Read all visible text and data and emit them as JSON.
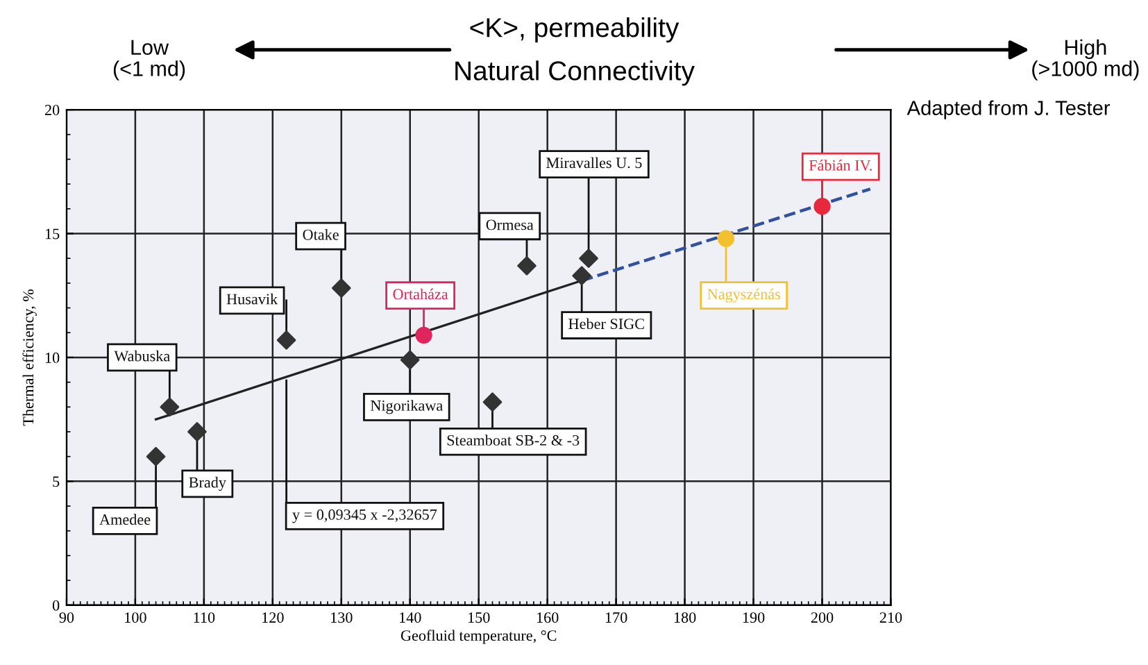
{
  "chart_data": {
    "type": "scatter",
    "xlabel": "Geofluid temperature, °C",
    "ylabel": "Thermal efficiency, %",
    "xlim": [
      90,
      210
    ],
    "xticks": [
      90,
      100,
      110,
      120,
      130,
      140,
      150,
      160,
      170,
      180,
      190,
      200,
      210
    ],
    "ylim": [
      0,
      20
    ],
    "yticks": [
      0,
      5,
      10,
      15,
      20
    ],
    "grid": true,
    "series": [
      {
        "marker": "diamond",
        "color": "#333333",
        "x": [
          103,
          105,
          109,
          122,
          130,
          140,
          152,
          157,
          165,
          166
        ],
        "values": [
          6,
          8,
          7,
          10.7,
          12.8,
          9.9,
          8.2,
          13.7,
          13.3,
          14
        ]
      },
      {
        "marker": "circle",
        "color": "#e0245e",
        "x": [
          142
        ],
        "values": [
          10.9
        ]
      },
      {
        "marker": "circle",
        "color": "#f5c030",
        "x": [
          186
        ],
        "values": [
          14.8
        ]
      },
      {
        "marker": "circle",
        "color": "#e8283c",
        "x": [
          200
        ],
        "values": [
          16.1
        ]
      },
      {
        "type": "line",
        "line_style": "solid",
        "color": "#222222",
        "x": [
          103,
          165
        ],
        "values": [
          7.5,
          13.1
        ]
      },
      {
        "type": "line",
        "line_style": "dashed",
        "color": "#3050a0",
        "x": [
          165,
          207
        ],
        "values": [
          13.1,
          16.8
        ]
      }
    ],
    "annotations": [
      {
        "text": "Amedee",
        "x": 103,
        "y": 6
      },
      {
        "text": "Wabuska",
        "x": 105,
        "y": 8
      },
      {
        "text": "Brady",
        "x": 109,
        "y": 7
      },
      {
        "text": "Husavik",
        "x": 122,
        "y": 10.7
      },
      {
        "text": "Otake",
        "x": 130,
        "y": 12.8
      },
      {
        "text": "Nigorikawa",
        "x": 140,
        "y": 9.9
      },
      {
        "text": "Ortaháza",
        "x": 142,
        "y": 10.9
      },
      {
        "text": "Steamboat SB-2 & -3",
        "x": 152,
        "y": 8.2
      },
      {
        "text": "Ormesa",
        "x": 157,
        "y": 13.7
      },
      {
        "text": "Heber SIGC",
        "x": 165,
        "y": 13.3
      },
      {
        "text": "Miravalles U. 5",
        "x": 166,
        "y": 14
      },
      {
        "text": "Nagyszénás",
        "x": 186,
        "y": 14.8
      },
      {
        "text": "Fábián IV.",
        "x": 200,
        "y": 16.1
      },
      {
        "text": "y = 0,09345 x -2,32657",
        "x": 122,
        "y": 9.07
      },
      "Low\n(<1 md)",
      "<K>, permeability",
      "Natural Connectivity",
      "High\n(>1000 md)",
      "Adapted from J. Tester"
    ]
  }
}
